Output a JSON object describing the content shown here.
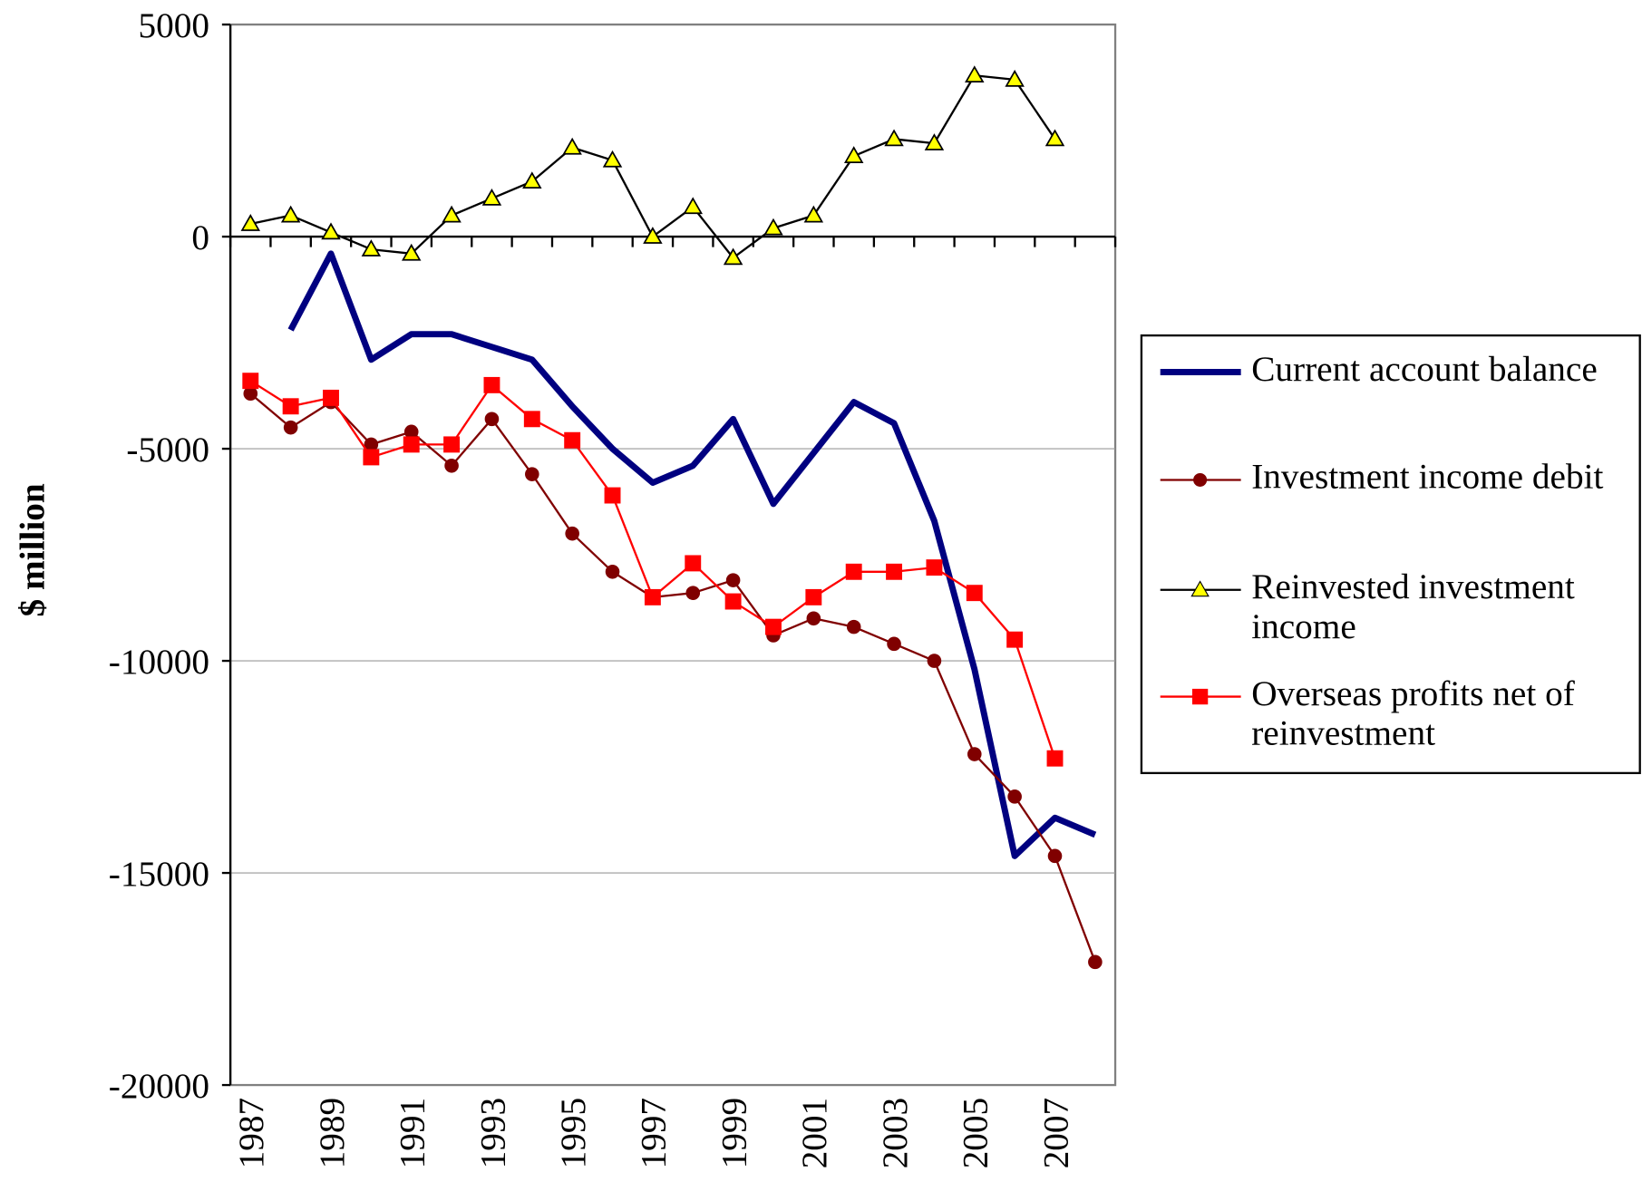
{
  "chart_data": {
    "type": "line",
    "y_label": "$ million",
    "categories": [
      "1987",
      null,
      "1989",
      null,
      "1991",
      null,
      "1993",
      null,
      "1995",
      null,
      "1997",
      null,
      "1999",
      null,
      "2001",
      null,
      "2003",
      null,
      "2005",
      null,
      "2007",
      null
    ],
    "ylim": [
      -20000,
      5000
    ],
    "yticks": [
      -20000,
      -15000,
      -10000,
      -5000,
      0,
      5000
    ],
    "grid": true,
    "series": [
      {
        "name": "Current account balance",
        "color": "#000080",
        "marker": "none",
        "width": 6,
        "values": [
          null,
          -2200,
          -400,
          -2900,
          -2300,
          -2300,
          -2600,
          -2900,
          -4000,
          -5000,
          -5800,
          -5400,
          -4300,
          -6300,
          -5100,
          -3900,
          -4400,
          -6700,
          -10200,
          -14600,
          -13700,
          -14100
        ]
      },
      {
        "name": "Investment income debit",
        "color": "#800000",
        "marker": "circle",
        "width": 2,
        "values": [
          -3700,
          -4500,
          -3900,
          -4900,
          -4600,
          -5400,
          -4300,
          -5600,
          -7000,
          -7900,
          -8500,
          -8400,
          -8100,
          -9400,
          -9000,
          -9200,
          -9600,
          -10000,
          -12200,
          -13200,
          -14600,
          -17100
        ]
      },
      {
        "name": "Reinvested investment income",
        "color": "#000000",
        "marker": "triangle",
        "marker_fill": "#ffff00",
        "width": 2,
        "values": [
          300,
          500,
          100,
          -300,
          -400,
          500,
          900,
          1300,
          2100,
          1800,
          0,
          700,
          -500,
          200,
          500,
          1900,
          2300,
          2200,
          3800,
          3700,
          2300,
          null
        ]
      },
      {
        "name": "Overseas profits net of reinvestment",
        "color": "#ff0000",
        "marker": "square",
        "width": 2,
        "values": [
          -3400,
          -4000,
          -3800,
          -5200,
          -4900,
          -4900,
          -3500,
          -4300,
          -4800,
          -6100,
          -8500,
          -7700,
          -8600,
          -9200,
          -8500,
          -7900,
          -7900,
          -7800,
          -8400,
          -9500,
          -12300,
          null
        ]
      }
    ]
  }
}
